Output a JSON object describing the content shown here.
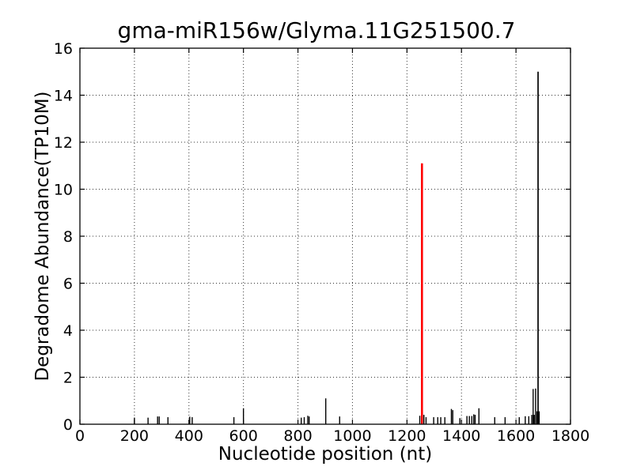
{
  "figure": {
    "background": "#ffffff"
  },
  "chart_data": {
    "type": "bar",
    "subtype": "vlines-spike-plot",
    "title": "gma-miR156w/Glyma.11G251500.7",
    "xlabel": "Nucleotide position (nt)",
    "ylabel": "Degradome Abundance(TP10M)",
    "xlim": [
      0,
      1800
    ],
    "ylim": [
      0,
      16
    ],
    "xticks": [
      0,
      200,
      400,
      600,
      800,
      1000,
      1200,
      1400,
      1600,
      1800
    ],
    "yticks": [
      0,
      2,
      4,
      6,
      8,
      10,
      12,
      14,
      16
    ],
    "grid": true,
    "grid_linestyle": "dotted",
    "tick_direction": "in",
    "colors": {
      "spike_default": "#000000",
      "spike_highlight": "#ff0000",
      "axis": "#000000",
      "grid": "#333333",
      "background": "#ffffff"
    },
    "highlight_point": {
      "x": 1255,
      "y": 11.1,
      "color": "#ff0000"
    },
    "max_point": {
      "x": 1681,
      "y": 15.0,
      "color": "#000000"
    },
    "spikes": [
      {
        "x": 200,
        "y": 0.28
      },
      {
        "x": 250,
        "y": 0.28
      },
      {
        "x": 285,
        "y": 0.33
      },
      {
        "x": 291,
        "y": 0.33
      },
      {
        "x": 323,
        "y": 0.3
      },
      {
        "x": 403,
        "y": 0.32
      },
      {
        "x": 412,
        "y": 0.3
      },
      {
        "x": 565,
        "y": 0.3
      },
      {
        "x": 600,
        "y": 0.68
      },
      {
        "x": 812,
        "y": 0.28
      },
      {
        "x": 823,
        "y": 0.3
      },
      {
        "x": 836,
        "y": 0.36
      },
      {
        "x": 841,
        "y": 0.33
      },
      {
        "x": 902,
        "y": 1.1
      },
      {
        "x": 953,
        "y": 0.33
      },
      {
        "x": 1247,
        "y": 0.36
      },
      {
        "x": 1255,
        "y": 11.1,
        "color": "#ff0000",
        "w": 2.6
      },
      {
        "x": 1262,
        "y": 0.4
      },
      {
        "x": 1270,
        "y": 0.3
      },
      {
        "x": 1298,
        "y": 0.3
      },
      {
        "x": 1313,
        "y": 0.3
      },
      {
        "x": 1324,
        "y": 0.3
      },
      {
        "x": 1339,
        "y": 0.3
      },
      {
        "x": 1363,
        "y": 0.65
      },
      {
        "x": 1368,
        "y": 0.6
      },
      {
        "x": 1394,
        "y": 0.26
      },
      {
        "x": 1420,
        "y": 0.35
      },
      {
        "x": 1429,
        "y": 0.35
      },
      {
        "x": 1438,
        "y": 0.35
      },
      {
        "x": 1445,
        "y": 0.42
      },
      {
        "x": 1450,
        "y": 0.4
      },
      {
        "x": 1464,
        "y": 0.68
      },
      {
        "x": 1522,
        "y": 0.3
      },
      {
        "x": 1560,
        "y": 0.3
      },
      {
        "x": 1612,
        "y": 0.3
      },
      {
        "x": 1634,
        "y": 0.34
      },
      {
        "x": 1647,
        "y": 0.34
      },
      {
        "x": 1658,
        "y": 0.4
      },
      {
        "x": 1663,
        "y": 1.5
      },
      {
        "x": 1667,
        "y": 0.4
      },
      {
        "x": 1672,
        "y": 1.52
      },
      {
        "x": 1677,
        "y": 0.55
      },
      {
        "x": 1681,
        "y": 15.0,
        "w": 1.7
      },
      {
        "x": 1685,
        "y": 0.55
      }
    ]
  }
}
